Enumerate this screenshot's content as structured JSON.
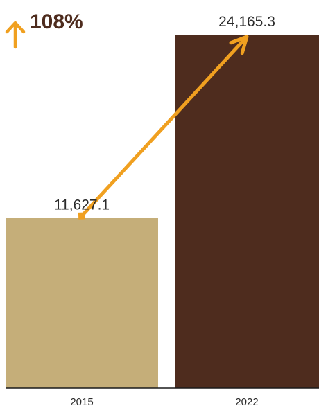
{
  "change": {
    "label": "108%",
    "direction": "up"
  },
  "colors": {
    "bar_2015": "#c5ae79",
    "bar_2022": "#4e2c1e",
    "arrow": "#f0a020",
    "text": "#2b2b2b",
    "baseline": "#1a1a1a"
  },
  "chart_data": {
    "type": "bar",
    "categories": [
      "2015",
      "2022"
    ],
    "values": [
      11627.1,
      24165.3
    ],
    "value_labels": [
      "11,627.1",
      "24,165.3"
    ],
    "title": "",
    "xlabel": "",
    "ylabel": "",
    "grid": false,
    "legend": "none"
  }
}
